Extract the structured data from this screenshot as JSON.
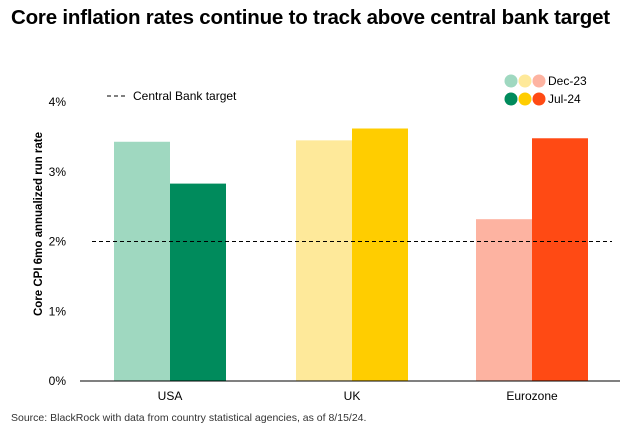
{
  "title": "Core inflation rates continue to track above central bank target",
  "source": "Source: BlackRock with data from country statistical agencies, as of 8/15/24.",
  "chart_data": {
    "type": "bar",
    "title": "Core inflation rates continue to track above central bank target",
    "xlabel": "",
    "ylabel": "Core CPI 6mo annualized run rate",
    "ylim": [
      0,
      4
    ],
    "yticks": [
      "0%",
      "1%",
      "2%",
      "3%",
      "4%"
    ],
    "categories": [
      "USA",
      "UK",
      "Eurozone"
    ],
    "series": [
      {
        "name": "Dec-23",
        "values": [
          3.43,
          3.45,
          2.32
        ],
        "colors": [
          "#9fd8c0",
          "#fee99a",
          "#fdb3a1"
        ]
      },
      {
        "name": "Jul-24",
        "values": [
          2.83,
          3.62,
          3.48
        ],
        "colors": [
          "#008b5c",
          "#ffcd00",
          "#ff4a14"
        ]
      }
    ],
    "reference_line": {
      "label": "Central Bank target",
      "value": 2.0,
      "style": "dashed"
    },
    "legend_position": "top-right",
    "grid": false
  }
}
